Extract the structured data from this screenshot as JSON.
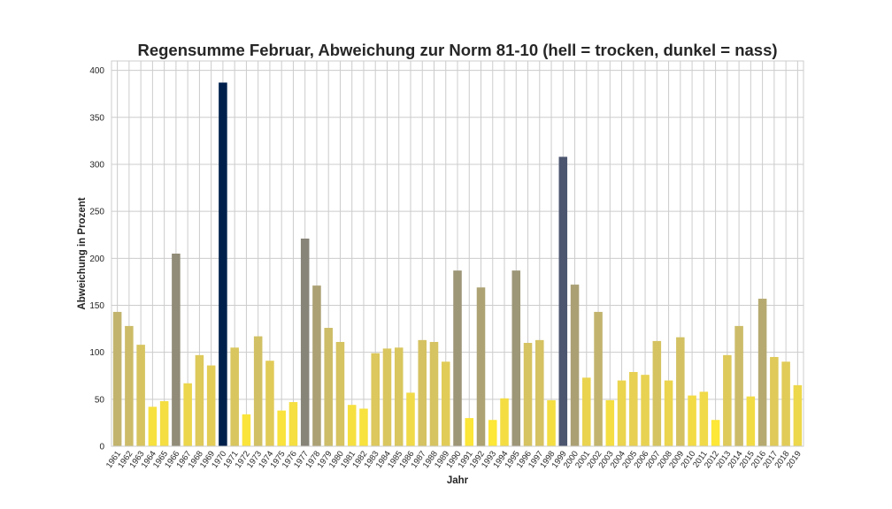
{
  "chart_data": {
    "type": "bar",
    "title": "Regensumme Februar, Abweichung zur Norm 81-10 (hell = trocken, dunkel = nass)",
    "xlabel": "Jahr",
    "ylabel": "Abweichung in Prozent",
    "ylim": [
      0,
      410
    ],
    "yticks": [
      0,
      50,
      100,
      150,
      200,
      250,
      300,
      350,
      400
    ],
    "grid": true,
    "colormap": "cividis (reversed: light = dry, dark = wet)",
    "categories": [
      "1961",
      "1962",
      "1963",
      "1964",
      "1965",
      "1966",
      "1967",
      "1968",
      "1969",
      "1970",
      "1971",
      "1972",
      "1973",
      "1974",
      "1975",
      "1976",
      "1977",
      "1978",
      "1979",
      "1980",
      "1981",
      "1982",
      "1983",
      "1984",
      "1985",
      "1986",
      "1987",
      "1988",
      "1989",
      "1990",
      "1991",
      "1992",
      "1993",
      "1994",
      "1995",
      "1996",
      "1997",
      "1998",
      "1999",
      "2000",
      "2001",
      "2002",
      "2003",
      "2004",
      "2005",
      "2006",
      "2007",
      "2008",
      "2009",
      "2010",
      "2011",
      "2012",
      "2013",
      "2014",
      "2015",
      "2016",
      "2017",
      "2018",
      "2019"
    ],
    "values": [
      143,
      128,
      108,
      42,
      48,
      205,
      67,
      97,
      86,
      387,
      105,
      34,
      117,
      91,
      38,
      47,
      221,
      171,
      126,
      111,
      44,
      40,
      99,
      104,
      105,
      57,
      113,
      111,
      90,
      187,
      30,
      169,
      28,
      51,
      187,
      110,
      113,
      49,
      308,
      172,
      73,
      143,
      49,
      70,
      79,
      76,
      112,
      70,
      116,
      54,
      58,
      28,
      97,
      128,
      53,
      157,
      95,
      90,
      65
    ]
  }
}
